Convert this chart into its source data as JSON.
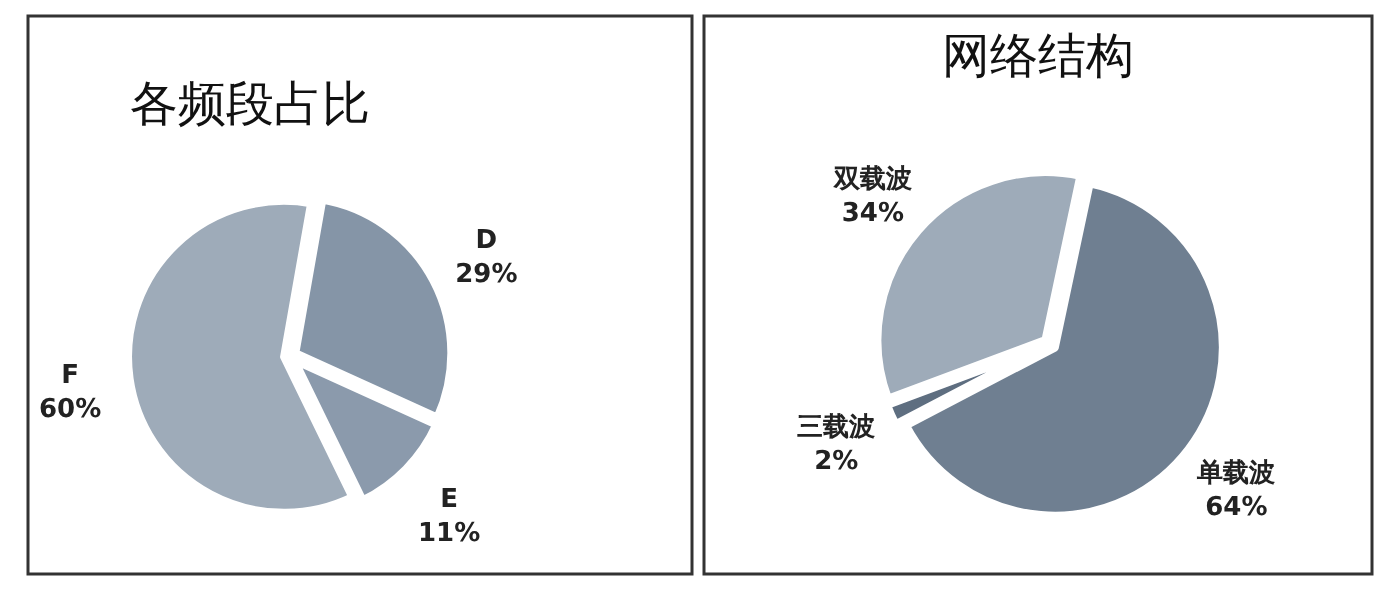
{
  "chart_data": [
    {
      "type": "pie",
      "title": "各频段占比",
      "categories": [
        "D",
        "E",
        "F"
      ],
      "values": [
        29,
        11,
        60
      ],
      "value_labels": [
        "29%",
        "11%",
        "60%"
      ],
      "colors": [
        "#8595a7",
        "#8b9aac",
        "#9eabb9"
      ]
    },
    {
      "type": "pie",
      "title": "网络结构",
      "categories": [
        "单载波",
        "三载波",
        "双载波"
      ],
      "values": [
        64,
        2,
        34
      ],
      "value_labels": [
        "64%",
        "2%",
        "34%"
      ],
      "colors": [
        "#6f7f91",
        "#5e6e80",
        "#9eabb9"
      ]
    }
  ]
}
